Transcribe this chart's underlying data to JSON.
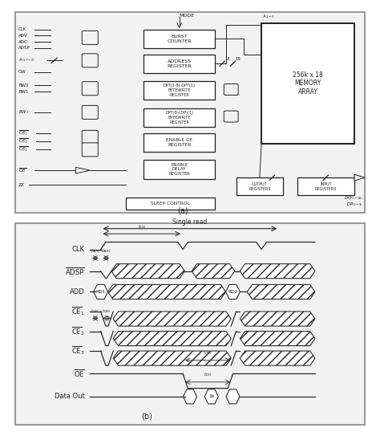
{
  "fig_bg": "#c8c8c8",
  "panel_bg": "#f2f2f2",
  "line_color": "#222222",
  "title_a": "(a)",
  "title_b": "(b)",
  "single_read_text": "Single read",
  "timing_signals": [
    "CLK",
    "ADSP",
    "ADD",
    "CE1",
    "CE2",
    "CE3",
    "OE",
    "Data Out"
  ],
  "block_labels": {
    "burst": [
      "BURST",
      "COUNTER"
    ],
    "address": [
      "ADDRESS",
      "REGISTER"
    ],
    "bw1": [
      "DPT(1-8),DPT(1)",
      "BYTEWRITE",
      "REGISTER"
    ],
    "bw2": [
      "DPT(8-LDP)(1)",
      "BYTEWRITE",
      "REGISTER"
    ],
    "enable_ce": [
      "ENABLE CE",
      "REGISTER"
    ],
    "enable_delay": [
      "ENABLE",
      "DELAY",
      "REGISTER"
    ],
    "memory": [
      "256k x 18",
      "MEMORY",
      "ARRAY"
    ],
    "output_reg": [
      "OUTPUT",
      "REGISTERS"
    ],
    "input_reg": [
      "INPUT",
      "REGISTERS"
    ],
    "sleep": [
      "SLEEP CONTROL"
    ]
  }
}
